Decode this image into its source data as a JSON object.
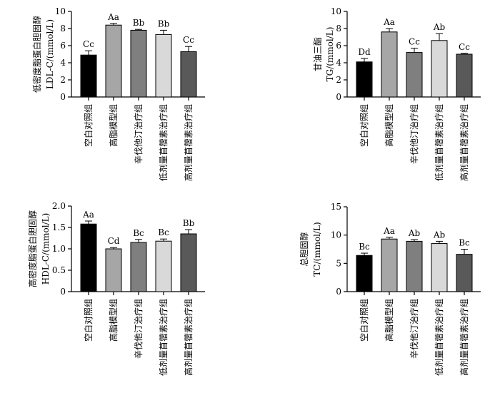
{
  "chart_data": [
    {
      "type": "bar",
      "ylabel_lines": [
        "低密度脂蛋白胆固醇",
        "LDL-C/(mmol/L)"
      ],
      "categories": [
        "空白对照组",
        "高脂模型组",
        "辛伐他汀治疗组",
        "低剂量苜蓿素治疗组",
        "高剂量苜蓿素治疗组"
      ],
      "values": [
        4.9,
        8.4,
        7.8,
        7.3,
        5.3
      ],
      "errors": [
        0.5,
        0.2,
        0.1,
        0.5,
        0.6
      ],
      "significance": [
        "Cc",
        "Aa",
        "Bb",
        "Bb",
        "Cc"
      ],
      "colors": [
        "#000000",
        "#a6a6a6",
        "#7f7f7f",
        "#d9d9d9",
        "#595959"
      ],
      "ylim": [
        0,
        10
      ],
      "yticks": [
        "0",
        "2",
        "4",
        "6",
        "8",
        "10"
      ]
    },
    {
      "type": "bar",
      "ylabel_lines": [
        "甘油三酯",
        "TG/(mmol/L)"
      ],
      "categories": [
        "空白对照组",
        "高脂模型组",
        "辛伐他汀治疗组",
        "低剂量苜蓿素治疗组",
        "高剂量苜蓿素治疗组"
      ],
      "values": [
        4.1,
        7.6,
        5.2,
        6.6,
        5.0
      ],
      "errors": [
        0.4,
        0.4,
        0.5,
        0.8,
        0.1
      ],
      "significance": [
        "Dd",
        "Aa",
        "Cc",
        "Ab",
        "Cc"
      ],
      "colors": [
        "#000000",
        "#a6a6a6",
        "#7f7f7f",
        "#d9d9d9",
        "#595959"
      ],
      "ylim": [
        0,
        10
      ],
      "yticks": [
        "0",
        "2",
        "4",
        "6",
        "8",
        "10"
      ]
    },
    {
      "type": "bar",
      "ylabel_lines": [
        "高密度脂蛋白胆固醇",
        "HDL-C/(mmol/L)"
      ],
      "categories": [
        "空白对照组",
        "高脂模型组",
        "辛伐他汀治疗组",
        "低剂量苜蓿素治疗组",
        "高剂量苜蓿素治疗组"
      ],
      "values": [
        1.58,
        1.0,
        1.15,
        1.18,
        1.35
      ],
      "errors": [
        0.07,
        0.03,
        0.07,
        0.05,
        0.1
      ],
      "significance": [
        "Aa",
        "Cd",
        "Bc",
        "Bc",
        "Bb"
      ],
      "colors": [
        "#000000",
        "#a6a6a6",
        "#7f7f7f",
        "#d9d9d9",
        "#595959"
      ],
      "ylim": [
        0,
        2.0
      ],
      "yticks": [
        "0",
        "0.5",
        "1.0",
        "1.5",
        "2.0"
      ]
    },
    {
      "type": "bar",
      "ylabel_lines": [
        "总胆固醇",
        "TC/(mmol/L)"
      ],
      "categories": [
        "空白对照组",
        "高脂模型组",
        "辛伐他汀治疗组",
        "低剂量苜蓿素治疗组",
        "高剂量苜蓿素治疗组"
      ],
      "values": [
        6.4,
        9.3,
        8.9,
        8.5,
        6.6
      ],
      "errors": [
        0.4,
        0.3,
        0.3,
        0.4,
        0.9
      ],
      "significance": [
        "Bc",
        "Aa",
        "Ab",
        "Ab",
        "Bc"
      ],
      "colors": [
        "#000000",
        "#a6a6a6",
        "#7f7f7f",
        "#d9d9d9",
        "#595959"
      ],
      "ylim": [
        0,
        15
      ],
      "yticks": [
        "0",
        "5",
        "10",
        "15"
      ]
    }
  ]
}
